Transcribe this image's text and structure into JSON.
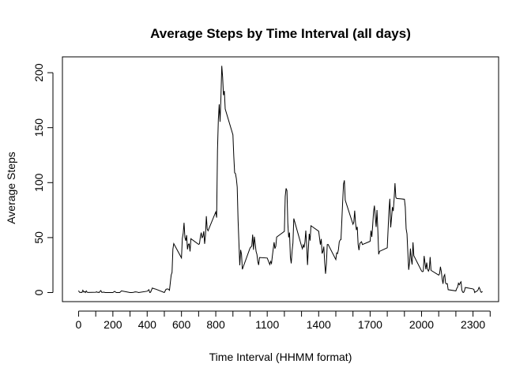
{
  "chart_data": {
    "type": "line",
    "title": "Average Steps by Time Interval (all days)",
    "xlabel": "Time Interval (HHMM format)",
    "ylabel": "Average Steps",
    "color": "#000000",
    "x": [
      0,
      5,
      10,
      15,
      20,
      25,
      30,
      35,
      40,
      45,
      50,
      55,
      100,
      105,
      110,
      115,
      120,
      125,
      130,
      135,
      140,
      145,
      150,
      155,
      200,
      210,
      220,
      230,
      240,
      250,
      300,
      310,
      320,
      330,
      340,
      350,
      400,
      410,
      415,
      420,
      430,
      440,
      450,
      500,
      510,
      520,
      525,
      530,
      540,
      545,
      550,
      555,
      600,
      605,
      610,
      615,
      620,
      625,
      630,
      635,
      640,
      645,
      650,
      655,
      700,
      705,
      710,
      715,
      720,
      725,
      730,
      735,
      740,
      745,
      750,
      755,
      800,
      805,
      810,
      815,
      820,
      825,
      830,
      835,
      840,
      845,
      850,
      855,
      900,
      905,
      910,
      915,
      920,
      925,
      930,
      935,
      940,
      945,
      950,
      955,
      1000,
      1010,
      1015,
      1020,
      1025,
      1030,
      1035,
      1040,
      1045,
      1050,
      1055,
      1100,
      1115,
      1120,
      1125,
      1130,
      1140,
      1145,
      1150,
      1155,
      1200,
      1205,
      1210,
      1215,
      1220,
      1225,
      1230,
      1235,
      1240,
      1245,
      1250,
      1255,
      1300,
      1305,
      1310,
      1315,
      1320,
      1325,
      1330,
      1335,
      1340,
      1345,
      1350,
      1355,
      1400,
      1410,
      1415,
      1420,
      1425,
      1430,
      1435,
      1440,
      1445,
      1450,
      1455,
      1500,
      1505,
      1510,
      1515,
      1520,
      1525,
      1530,
      1535,
      1540,
      1545,
      1550,
      1555,
      1600,
      1605,
      1610,
      1615,
      1620,
      1625,
      1630,
      1635,
      1640,
      1645,
      1650,
      1655,
      1700,
      1705,
      1710,
      1715,
      1720,
      1725,
      1730,
      1735,
      1740,
      1745,
      1750,
      1755,
      1800,
      1805,
      1810,
      1815,
      1820,
      1825,
      1830,
      1835,
      1840,
      1845,
      1850,
      1855,
      1900,
      1905,
      1910,
      1915,
      1920,
      1925,
      1930,
      1935,
      1940,
      1945,
      1950,
      1955,
      2000,
      2005,
      2010,
      2015,
      2020,
      2025,
      2030,
      2035,
      2040,
      2045,
      2050,
      2055,
      2100,
      2105,
      2110,
      2115,
      2120,
      2125,
      2130,
      2135,
      2140,
      2145,
      2150,
      2155,
      2200,
      2205,
      2210,
      2215,
      2220,
      2225,
      2230,
      2235,
      2240,
      2245,
      2250,
      2255,
      2300,
      2305,
      2310,
      2315,
      2320,
      2325,
      2330,
      2335,
      2340,
      2345,
      2350,
      2355
    ],
    "values": [
      1.7,
      0.3,
      0.1,
      0.2,
      0.1,
      2.1,
      0.5,
      0.9,
      0,
      1.5,
      0.3,
      0.1,
      0.3,
      0.7,
      0.2,
      0.3,
      0,
      1.1,
      1.8,
      0.2,
      0.2,
      0.4,
      0.3,
      0,
      0,
      1.1,
      0,
      0,
      0,
      1.5,
      0,
      0,
      0.2,
      0.6,
      0.5,
      0,
      1.2,
      2.6,
      0,
      0.3,
      4.1,
      3.5,
      3.1,
      0,
      3,
      3.3,
      2.9,
      2.1,
      16,
      18.3,
      39.5,
      44.5,
      31.5,
      49.3,
      53.8,
      63.5,
      50,
      47.1,
      52.2,
      39.3,
      44,
      44.2,
      37.4,
      49,
      43.8,
      44.4,
      50.5,
      54.5,
      49.9,
      51,
      55.7,
      44.3,
      52.3,
      69.5,
      57.8,
      56.2,
      73.4,
      68.2,
      129.4,
      157.5,
      171.2,
      155.4,
      177.3,
      206.2,
      195.9,
      179.6,
      183.4,
      167,
      143.5,
      124,
      109.1,
      108.1,
      103.7,
      95.9,
      66.2,
      45.2,
      24.8,
      38.8,
      35,
      21.1,
      40.6,
      42.4,
      52.7,
      38.9,
      50.8,
      44.3,
      37.4,
      34.7,
      28.3,
      25.1,
      31.9,
      31.4,
      25.5,
      28.3,
      26.5,
      33.3,
      45.8,
      40,
      42,
      50.5,
      55.7,
      87.6,
      94.8,
      92.8,
      63.4,
      50.2,
      54.5,
      32.4,
      26.5,
      37.7,
      45.1,
      67.3,
      42.3,
      39.9,
      43.3,
      41,
      46.2,
      56.4,
      42.8,
      25.1,
      40,
      53.5,
      47.3,
      60.8,
      55.8,
      43.6,
      48.7,
      35.5,
      37.5,
      41.8,
      27.5,
      17.1,
      26.1,
      43.6,
      43.8,
      30,
      36.1,
      35.5,
      38.8,
      46,
      47.8,
      48.1,
      65.3,
      82.9,
      98.7,
      102.1,
      84,
      62.1,
      64.1,
      74.5,
      63.2,
      56.9,
      59.8,
      43.9,
      38.6,
      44.7,
      45.5,
      46.2,
      43.7,
      46.6,
      56.3,
      50.7,
      61.2,
      73.4,
      79.1,
      68.9,
      59.7,
      75.1,
      56.5,
      34.8,
      37.5,
      40.7,
      58,
      74.7,
      85.3,
      59.3,
      67.8,
      77.7,
      74.2,
      85.3,
      99.5,
      86.6,
      85.6,
      84.9,
      77.8,
      58,
      53.4,
      36.3,
      20.7,
      27.4,
      40,
      30.2,
      25.5,
      45.7,
      33.5,
      19.6,
      19,
      19.3,
      33.3,
      26.8,
      21.2,
      27.3,
      21.3,
      19.5,
      21.3,
      32.3,
      20.2,
      15.9,
      17.2,
      23.5,
      19.2,
      12.5,
      8,
      14.7,
      16.3,
      8.7,
      7.8,
      8.1,
      2.6,
      1.5,
      3.7,
      4.8,
      8.5,
      7.1,
      8.7,
      9.8,
      2.2,
      0.3,
      0.1,
      1.6,
      4.6,
      3.3,
      2.8,
      0,
      0.8,
      1,
      1.6,
      2.6,
      4.7,
      3.3,
      0.6,
      0.2,
      1.1
    ],
    "xlim": [
      -94.2,
      2449.2
    ],
    "ylim": [
      -8.25,
      214.42
    ],
    "xticks": [
      0,
      {
        "value": 100,
        "label": null
      },
      200,
      {
        "value": 300,
        "label": null
      },
      400,
      {
        "value": 500,
        "label": null
      },
      600,
      {
        "value": 700,
        "label": null
      },
      800,
      {
        "value": 900,
        "label": null
      },
      {
        "value": 1000,
        "label": null
      },
      1100,
      {
        "value": 1200,
        "label": null
      },
      {
        "value": 1300,
        "label": null
      },
      1400,
      {
        "value": 1500,
        "label": null
      },
      {
        "value": 1600,
        "label": null
      },
      1700,
      {
        "value": 1800,
        "label": null
      },
      {
        "value": 1900,
        "label": null
      },
      2000,
      {
        "value": 2100,
        "label": null
      },
      {
        "value": 2200,
        "label": null
      },
      2300,
      {
        "value": 2400,
        "label": null
      }
    ],
    "yticks": [
      0,
      50,
      100,
      150,
      200
    ]
  }
}
